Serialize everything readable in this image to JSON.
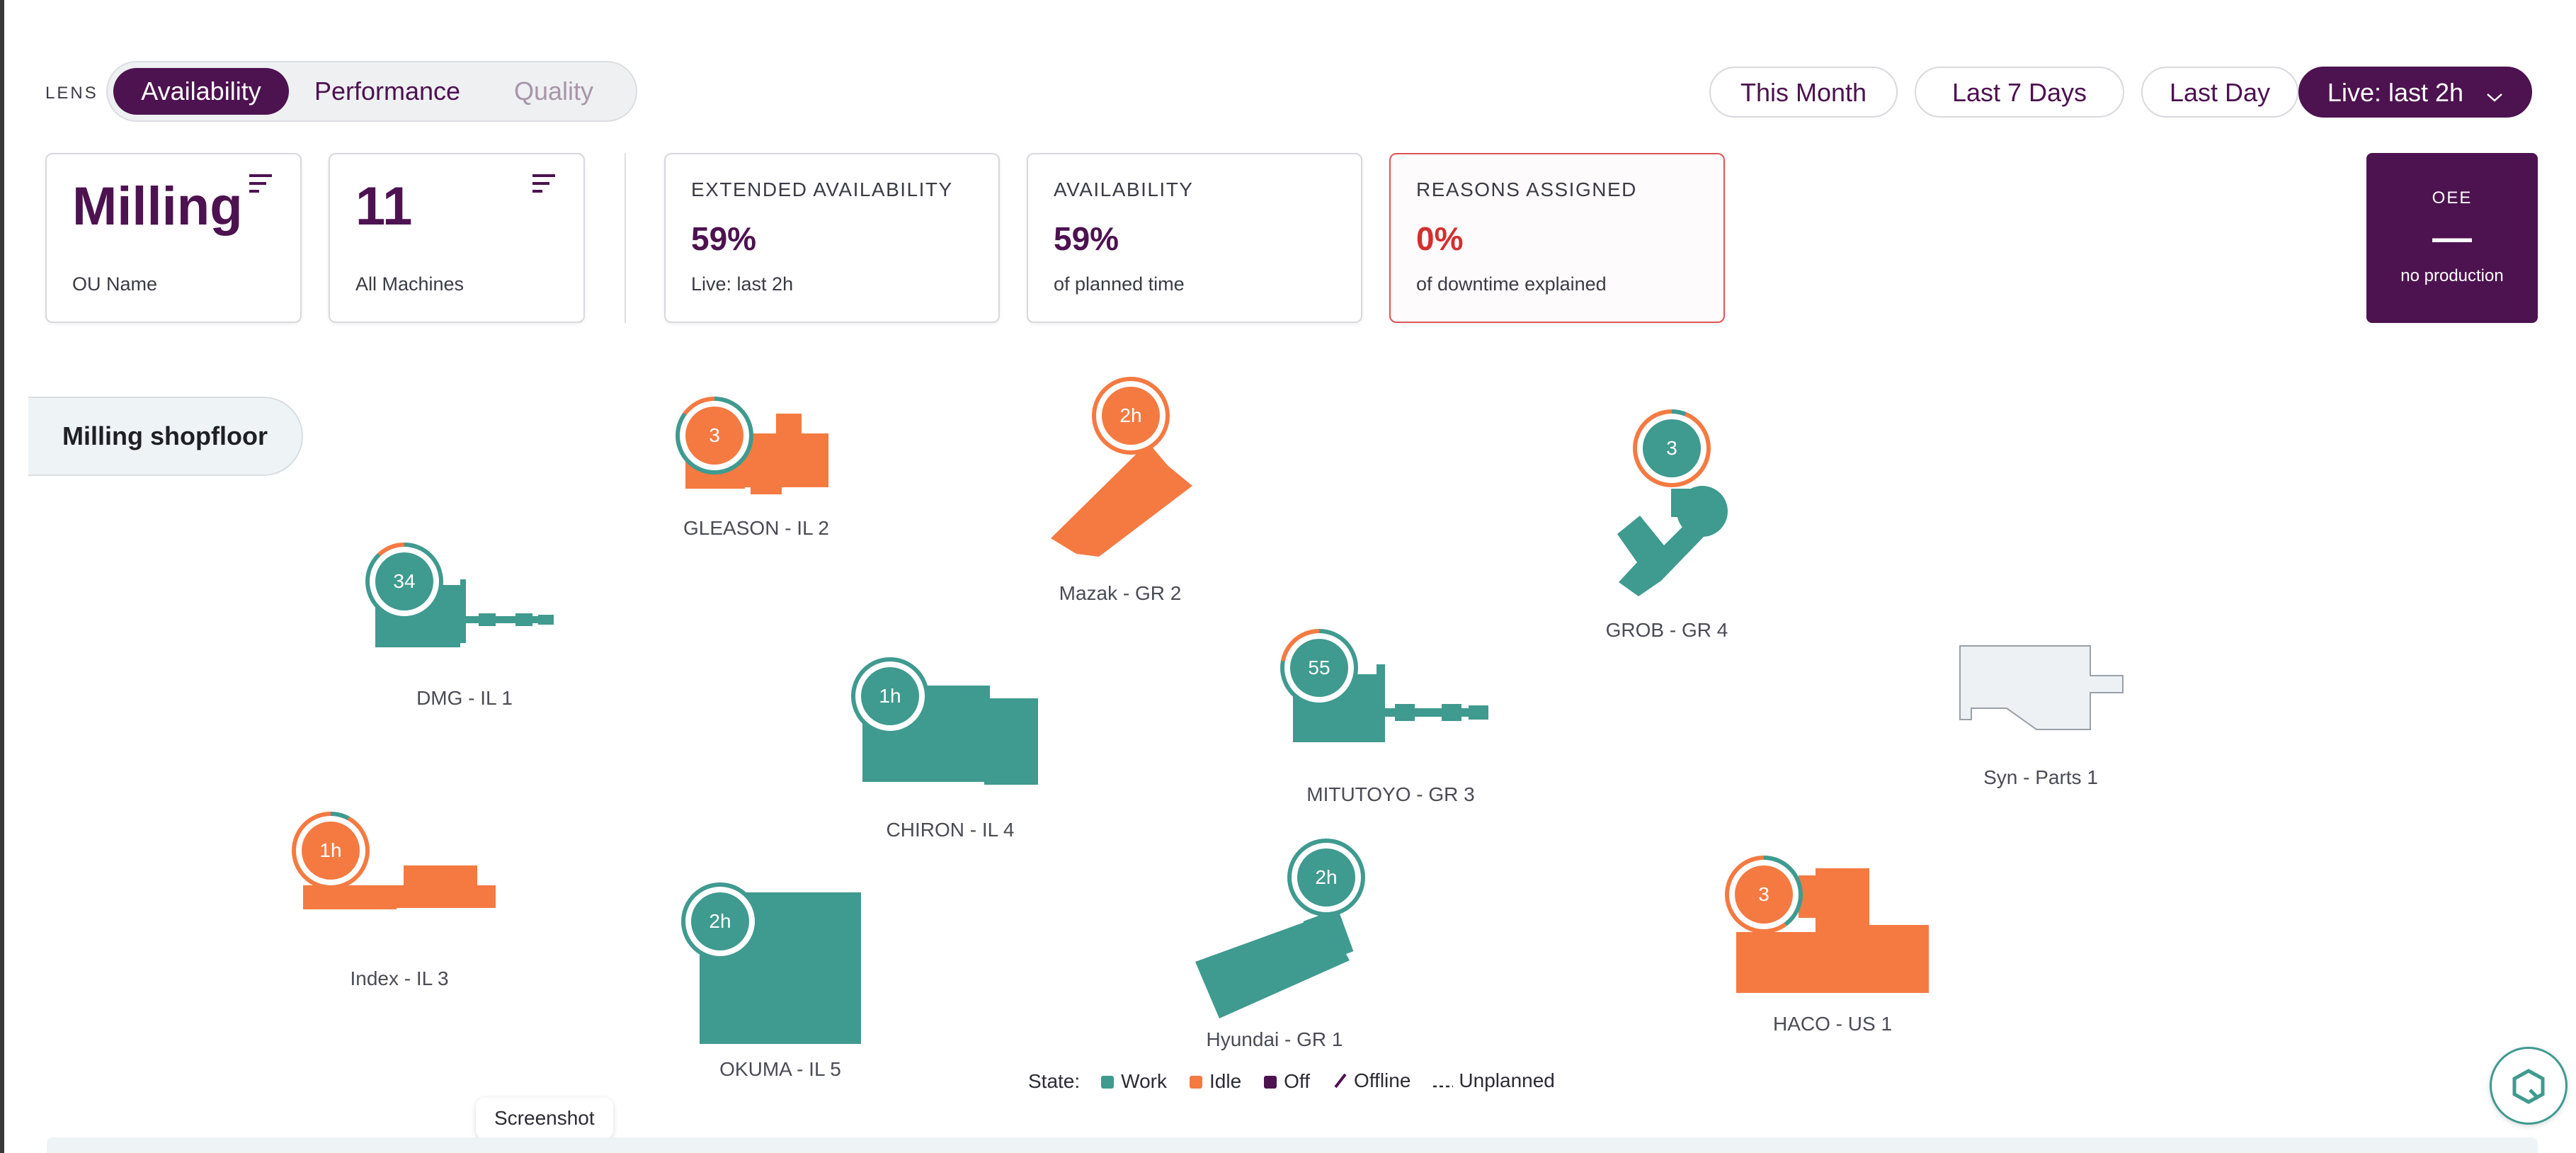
{
  "lens": {
    "label": "LENS",
    "options": [
      "Availability",
      "Performance",
      "Quality"
    ],
    "active": "Availability"
  },
  "time_range": {
    "options": [
      "This Month",
      "Last 7 Days",
      "Last Day",
      "Live: last 2h"
    ],
    "active": "Live: last 2h"
  },
  "filters": {
    "ou": {
      "value": "Milling",
      "label": "OU Name"
    },
    "machines": {
      "value": "11",
      "label": "All Machines"
    }
  },
  "kpis": [
    {
      "title": "EXTENDED AVAILABILITY",
      "value": "59%",
      "sub": "Live: last 2h"
    },
    {
      "title": "AVAILABILITY",
      "value": "59%",
      "sub": "of planned time"
    },
    {
      "title": "REASONS ASSIGNED",
      "value": "0%",
      "sub": "of downtime explained"
    }
  ],
  "oee": {
    "title": "OEE",
    "value": "—",
    "sub": "no production"
  },
  "shopfloor": {
    "tab_label": "Milling shopfloor",
    "machines": [
      {
        "name": "GLEASON - IL 2",
        "badge": "3",
        "state": "idle"
      },
      {
        "name": "Mazak - GR 2",
        "badge": "2h",
        "state": "idle"
      },
      {
        "name": "GROB - GR 4",
        "badge": "3",
        "state": "work"
      },
      {
        "name": "DMG - IL 1",
        "badge": "34",
        "state": "work"
      },
      {
        "name": "CHIRON - IL 4",
        "badge": "1h",
        "state": "work"
      },
      {
        "name": "MITUTOYO - GR 3",
        "badge": "55",
        "state": "work"
      },
      {
        "name": "Syn - Parts 1",
        "badge": "",
        "state": "offline"
      },
      {
        "name": "Index - IL 3",
        "badge": "1h",
        "state": "idle"
      },
      {
        "name": "OKUMA - IL 5",
        "badge": "2h",
        "state": "work"
      },
      {
        "name": "Hyundai - GR 1",
        "badge": "2h",
        "state": "work"
      },
      {
        "name": "HACO - US 1",
        "badge": "3",
        "state": "idle"
      }
    ]
  },
  "legend": {
    "title": "State:",
    "items": [
      {
        "label": "Work",
        "color": "#3f9a8f"
      },
      {
        "label": "Idle",
        "color": "#f47a42"
      },
      {
        "label": "Off",
        "color": "#4d1250"
      },
      {
        "label": "Offline",
        "color": "#4d1250"
      },
      {
        "label": "Unplanned",
        "color": "#2b2b33"
      }
    ]
  },
  "tooltip": "Screenshot",
  "colors": {
    "work": "#3f9a8f",
    "idle": "#f47a42",
    "brand": "#4d1250",
    "alert": "#d32f2f"
  }
}
